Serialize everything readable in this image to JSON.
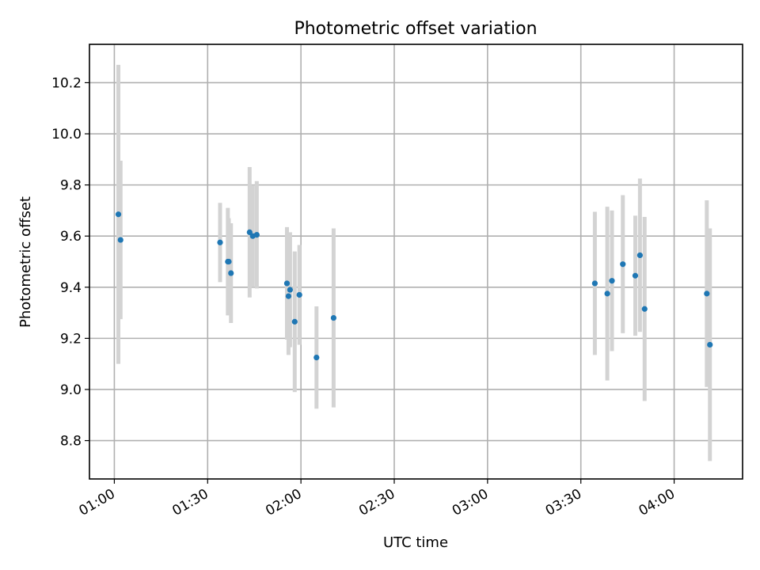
{
  "chart_data": {
    "type": "scatter",
    "title": "Photometric offset variation",
    "xlabel": "UTC time",
    "ylabel": "Photometric offset",
    "x_axis_type": "time",
    "xlim": [
      "00:52",
      "04:22"
    ],
    "ylim": [
      8.65,
      10.35
    ],
    "x_ticks": [
      "01:00",
      "01:30",
      "02:00",
      "02:30",
      "03:00",
      "03:30",
      "04:00"
    ],
    "y_ticks": [
      8.8,
      9.0,
      9.2,
      9.4,
      9.6,
      9.8,
      10.0,
      10.2
    ],
    "grid": true,
    "point_color": "#1f77b4",
    "errorbar_color": "#d3d3d3",
    "points": [
      {
        "x": "01:01.3",
        "y": 9.685,
        "err": 0.585
      },
      {
        "x": "01:02.0",
        "y": 9.585,
        "err": 0.31
      },
      {
        "x": "01:34.0",
        "y": 9.575,
        "err": 0.155
      },
      {
        "x": "01:36.5",
        "y": 9.5,
        "err": 0.21
      },
      {
        "x": "01:36.8",
        "y": 9.5,
        "err": 0.17
      },
      {
        "x": "01:37.5",
        "y": 9.455,
        "err": 0.195
      },
      {
        "x": "01:43.5",
        "y": 9.615,
        "err": 0.255
      },
      {
        "x": "01:44.5",
        "y": 9.6,
        "err": 0.2
      },
      {
        "x": "01:45.8",
        "y": 9.605,
        "err": 0.21
      },
      {
        "x": "01:55.5",
        "y": 9.415,
        "err": 0.22
      },
      {
        "x": "01:56.0",
        "y": 9.365,
        "err": 0.23
      },
      {
        "x": "01:56.5",
        "y": 9.39,
        "err": 0.225
      },
      {
        "x": "01:58.0",
        "y": 9.265,
        "err": 0.275
      },
      {
        "x": "01:59.5",
        "y": 9.37,
        "err": 0.195
      },
      {
        "x": "02:05.0",
        "y": 9.125,
        "err": 0.2
      },
      {
        "x": "02:10.5",
        "y": 9.28,
        "err": 0.35
      },
      {
        "x": "03:34.5",
        "y": 9.415,
        "err": 0.28
      },
      {
        "x": "03:38.5",
        "y": 9.375,
        "err": 0.34
      },
      {
        "x": "03:40.0",
        "y": 9.425,
        "err": 0.275
      },
      {
        "x": "03:43.5",
        "y": 9.49,
        "err": 0.27
      },
      {
        "x": "03:47.5",
        "y": 9.445,
        "err": 0.235
      },
      {
        "x": "03:49.0",
        "y": 9.525,
        "err": 0.3
      },
      {
        "x": "03:50.5",
        "y": 9.315,
        "err": 0.36
      },
      {
        "x": "04:10.5",
        "y": 9.375,
        "err": 0.365
      },
      {
        "x": "04:11.5",
        "y": 9.175,
        "err": 0.455
      }
    ]
  }
}
